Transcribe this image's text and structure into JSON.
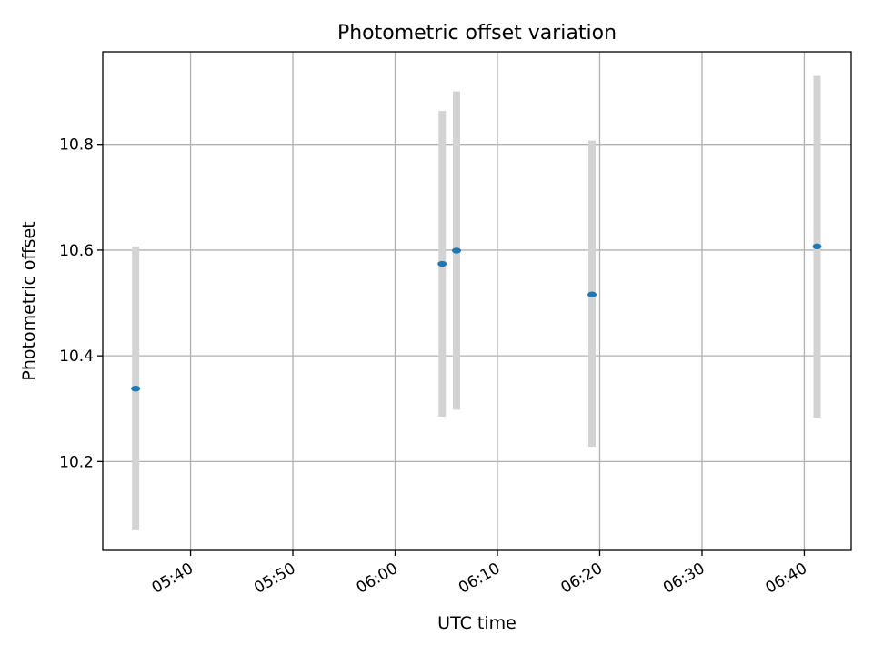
{
  "chart_data": {
    "type": "scatter",
    "title": "Photometric offset variation",
    "xlabel": "UTC time",
    "ylabel": "Photometric offset",
    "x_tick_labels": [
      "05:40",
      "05:50",
      "06:00",
      "06:10",
      "06:20",
      "06:30",
      "06:40"
    ],
    "y_tick_labels": [
      "10.2",
      "10.4",
      "10.6",
      "10.8"
    ],
    "x_ticks": [
      "05:40",
      "05:50",
      "06:00",
      "06:10",
      "06:20",
      "06:30",
      "06:40"
    ],
    "y_ticks": [
      10.2,
      10.4,
      10.6,
      10.8
    ],
    "xlim": [
      "05:31:25",
      "06:44:35"
    ],
    "ylim": [
      10.032,
      10.975
    ],
    "grid": true,
    "points": [
      {
        "x": "05:34:38",
        "y": 10.338,
        "ymin": 10.07,
        "ymax": 10.607
      },
      {
        "x": "06:04:36",
        "y": 10.574,
        "ymin": 10.285,
        "ymax": 10.863
      },
      {
        "x": "06:06:00",
        "y": 10.599,
        "ymin": 10.298,
        "ymax": 10.9
      },
      {
        "x": "06:19:15",
        "y": 10.516,
        "ymin": 10.228,
        "ymax": 10.807
      },
      {
        "x": "06:41:15",
        "y": 10.607,
        "ymin": 10.283,
        "ymax": 10.931
      }
    ],
    "colors": {
      "marker": "#1f77b4",
      "errorbar": "#d3d3d3",
      "grid": "#b0b0b0",
      "axes": "#000000"
    }
  }
}
